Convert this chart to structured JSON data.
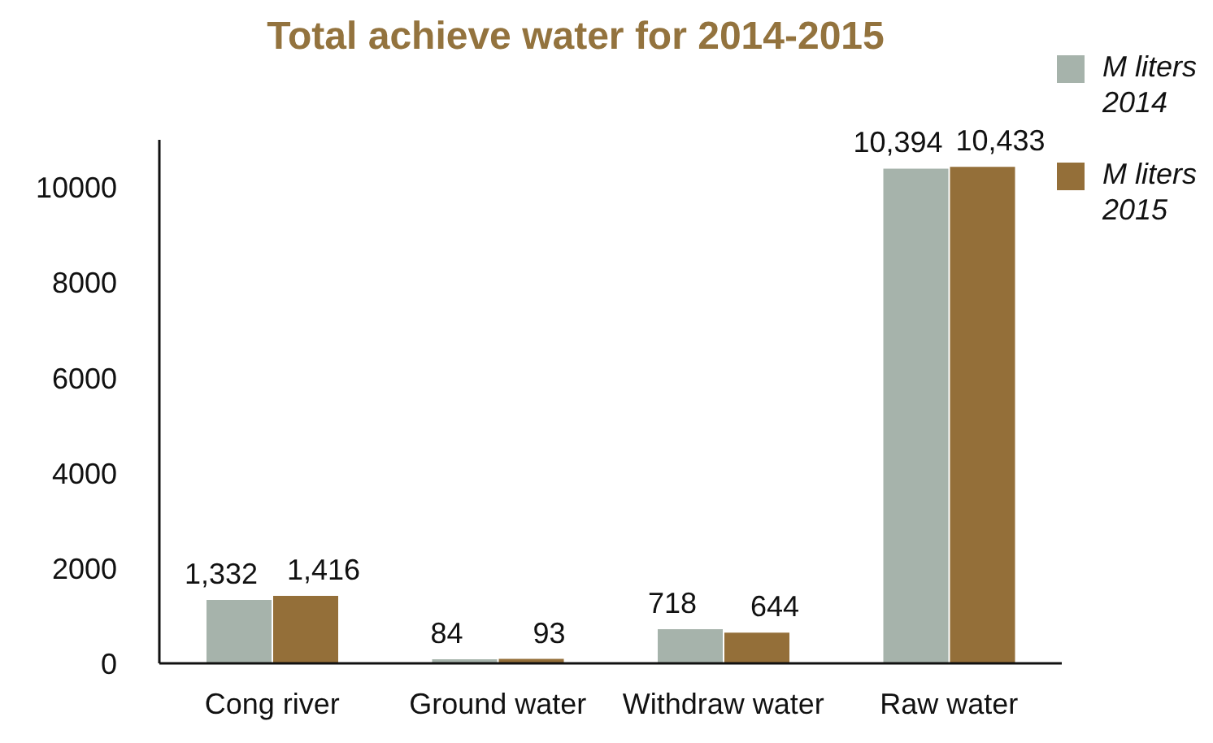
{
  "chart_data": {
    "type": "bar",
    "title": "Total achieve water for 2014-2015",
    "categories": [
      "Cong river",
      "Ground water",
      "Withdraw water",
      "Raw water"
    ],
    "series": [
      {
        "name": "M liters 2014",
        "color": "#a6b3ab",
        "values": [
          1332,
          84,
          718,
          10394
        ],
        "value_labels": [
          "1,332",
          "84",
          "718",
          "10,394"
        ]
      },
      {
        "name": "M liters 2015",
        "color": "#946f39",
        "values": [
          1416,
          93,
          644,
          10433
        ],
        "value_labels": [
          "1,416",
          "93",
          "644",
          "10,433"
        ]
      }
    ],
    "ylim": [
      0,
      11000
    ],
    "yticks": [
      0,
      2000,
      4000,
      6000,
      8000,
      10000
    ],
    "legend": "top right"
  }
}
